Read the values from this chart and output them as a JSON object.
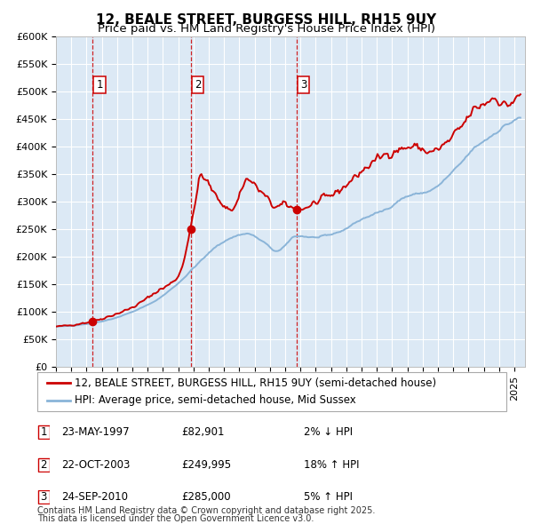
{
  "title": "12, BEALE STREET, BURGESS HILL, RH15 9UY",
  "subtitle": "Price paid vs. HM Land Registry's House Price Index (HPI)",
  "legend_label_red": "12, BEALE STREET, BURGESS HILL, RH15 9UY (semi-detached house)",
  "legend_label_blue": "HPI: Average price, semi-detached house, Mid Sussex",
  "transactions": [
    {
      "num": 1,
      "date": "23-MAY-1997",
      "price": 82901,
      "pct": "2%",
      "dir": "↓",
      "decimal_date": 1997.388
    },
    {
      "num": 2,
      "date": "22-OCT-2003",
      "price": 249995,
      "pct": "18%",
      "dir": "↑",
      "decimal_date": 2003.81
    },
    {
      "num": 3,
      "date": "24-SEP-2010",
      "price": 285000,
      "pct": "5%",
      "dir": "↑",
      "decimal_date": 2010.731
    }
  ],
  "footnote1": "Contains HM Land Registry data © Crown copyright and database right 2025.",
  "footnote2": "This data is licensed under the Open Government Licence v3.0.",
  "ylim": [
    0,
    600000
  ],
  "yticks": [
    0,
    50000,
    100000,
    150000,
    200000,
    250000,
    300000,
    350000,
    400000,
    450000,
    500000,
    550000,
    600000
  ],
  "xlim_start": 1995.0,
  "xlim_end": 2025.7,
  "plot_bg_color": "#dce9f5",
  "grid_color": "#ffffff",
  "red_line_color": "#cc0000",
  "blue_line_color": "#8ab4d8",
  "dashed_line_color": "#cc0000",
  "title_fontsize": 11,
  "subtitle_fontsize": 9.5,
  "tick_fontsize": 8,
  "legend_fontsize": 8.5,
  "footnote_fontsize": 7
}
